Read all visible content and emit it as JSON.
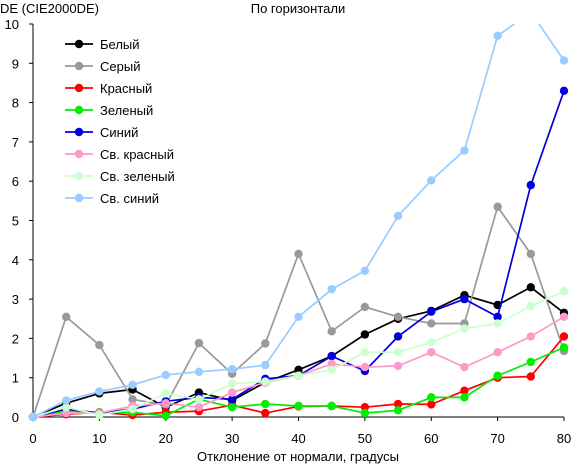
{
  "chart_data": {
    "type": "line",
    "title": "По горизонтали",
    "ylabel": "DE (CIE2000DE)",
    "xlabel": "Отклонение от нормали, градусы",
    "xlim": [
      0,
      80
    ],
    "ylim": [
      0,
      10
    ],
    "x_ticks": [
      "0",
      "10",
      "20",
      "30",
      "40",
      "50",
      "60",
      "70",
      "80"
    ],
    "y_ticks": [
      "0",
      "1",
      "2",
      "3",
      "4",
      "5",
      "6",
      "7",
      "8",
      "9",
      "10"
    ],
    "grid": false,
    "legend_position": "top-left",
    "x": [
      0,
      5,
      10,
      15,
      20,
      25,
      30,
      35,
      40,
      45,
      50,
      55,
      60,
      65,
      70,
      75,
      80
    ],
    "series": [
      {
        "name": "Белый",
        "color": "#000000",
        "values": [
          0,
          0.35,
          0.6,
          0.7,
          0.25,
          0.62,
          0.42,
          0.88,
          1.2,
          1.55,
          2.1,
          2.5,
          2.7,
          3.1,
          2.85,
          3.3,
          2.65
        ]
      },
      {
        "name": "Серый",
        "color": "#999999",
        "values": [
          0,
          2.55,
          1.83,
          0.45,
          0.3,
          1.88,
          1.1,
          1.87,
          4.15,
          2.18,
          2.8,
          2.55,
          2.38,
          2.38,
          5.35,
          4.15,
          1.68
        ]
      },
      {
        "name": "Красный",
        "color": "#ff0000",
        "values": [
          0,
          0.07,
          0.12,
          0.05,
          0.12,
          0.15,
          0.3,
          0.1,
          0.27,
          0.28,
          0.25,
          0.33,
          0.32,
          0.67,
          1.0,
          1.03,
          2.05
        ]
      },
      {
        "name": "Зеленый",
        "color": "#00ee00",
        "values": [
          0,
          0.15,
          0.12,
          0.12,
          0.03,
          0.45,
          0.25,
          0.33,
          0.28,
          0.28,
          0.1,
          0.17,
          0.5,
          0.5,
          1.05,
          1.4,
          1.77
        ]
      },
      {
        "name": "Синий",
        "color": "#0000dd",
        "values": [
          0,
          0.2,
          0.1,
          0.2,
          0.4,
          0.5,
          0.45,
          0.97,
          1.05,
          1.55,
          1.17,
          2.05,
          2.68,
          3.0,
          2.55,
          5.9,
          8.3
        ]
      },
      {
        "name": "Св. красный",
        "color": "#ff99cc",
        "values": [
          0,
          0.1,
          0.1,
          0.28,
          0.35,
          0.25,
          0.62,
          0.88,
          1.05,
          1.35,
          1.27,
          1.3,
          1.65,
          1.27,
          1.65,
          2.05,
          2.55
        ]
      },
      {
        "name": "Св. зеленый",
        "color": "#ccffcc",
        "values": [
          0,
          0.25,
          0.05,
          0.2,
          0.6,
          0.45,
          0.85,
          0.9,
          1.05,
          1.2,
          1.65,
          1.65,
          1.9,
          2.25,
          2.38,
          2.82,
          3.2
        ]
      },
      {
        "name": "Св. синий",
        "color": "#99ccff",
        "values": [
          0,
          0.42,
          0.65,
          0.82,
          1.07,
          1.15,
          1.22,
          1.32,
          2.55,
          3.25,
          3.72,
          5.12,
          6.02,
          6.78,
          9.7,
          10.3,
          9.07
        ]
      }
    ]
  }
}
